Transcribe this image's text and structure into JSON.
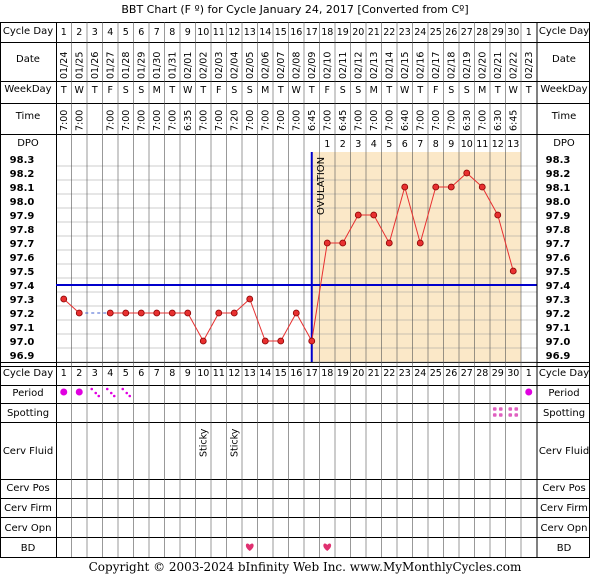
{
  "title": "BBT Chart (F º) for Cycle January 24, 2017  [Converted from Cº]",
  "row_labels": {
    "cycle_day": "Cycle Day",
    "date": "Date",
    "weekday": "WeekDay",
    "time": "Time",
    "dpo": "DPO",
    "period": "Period",
    "spotting": "Spotting",
    "cerv_fluid": "Cerv Fluid",
    "cerv_pos": "Cerv Pos",
    "cerv_firm": "Cerv Firm",
    "cerv_opn": "Cerv Opn",
    "bd": "BD"
  },
  "footer": "Copyright © 2003-2024 bInfinity Web Inc.    www.MyMonthlyCycles.com",
  "colors": {
    "background": "#ffffff",
    "luteal_fill": "#fbe8c8",
    "grid": "#999999",
    "temp_line": "#e83030",
    "temp_dot": "#e83030",
    "coverline": "#0000cc",
    "ovulation_line": "#0000cc",
    "period_dot": "#e000e0",
    "spotting": "#e060c0",
    "heart": "#e03070"
  },
  "chart_data": {
    "type": "line",
    "cycle_days": [
      1,
      2,
      3,
      4,
      5,
      6,
      7,
      8,
      9,
      10,
      11,
      12,
      13,
      14,
      15,
      16,
      17,
      18,
      19,
      20,
      21,
      22,
      23,
      24,
      25,
      26,
      27,
      28,
      29,
      30,
      1
    ],
    "dates": [
      "01/24",
      "01/25",
      "01/26",
      "01/27",
      "01/28",
      "01/29",
      "01/30",
      "01/31",
      "02/01",
      "02/02",
      "02/03",
      "02/04",
      "02/05",
      "02/06",
      "02/07",
      "02/08",
      "02/09",
      "02/10",
      "02/11",
      "02/12",
      "02/13",
      "02/14",
      "02/15",
      "02/16",
      "02/17",
      "02/18",
      "02/19",
      "02/20",
      "02/21",
      "02/22",
      "02/23"
    ],
    "weekdays": [
      "T",
      "W",
      "T",
      "F",
      "S",
      "S",
      "M",
      "T",
      "W",
      "T",
      "F",
      "S",
      "S",
      "M",
      "T",
      "W",
      "T",
      "F",
      "S",
      "S",
      "M",
      "T",
      "W",
      "T",
      "F",
      "S",
      "S",
      "M",
      "T",
      "W",
      "T"
    ],
    "times": [
      "7:00",
      "7:00",
      "",
      "7:00",
      "7:00",
      "7:00",
      "7:00",
      "7:00",
      "6:35",
      "7:00",
      "7:00",
      "7:20",
      "7:00",
      "7:00",
      "7:00",
      "7:00",
      "6:45",
      "7:00",
      "6:45",
      "7:00",
      "7:00",
      "7:00",
      "6:40",
      "7:00",
      "7:00",
      "7:00",
      "6:30",
      "7:00",
      "6:30",
      "6:45",
      ""
    ],
    "dpo": [
      "",
      "",
      "",
      "",
      "",
      "",
      "",
      "",
      "",
      "",
      "",
      "",
      "",
      "",
      "",
      "",
      "",
      "1",
      "2",
      "3",
      "4",
      "5",
      "6",
      "7",
      "8",
      "9",
      "10",
      "11",
      "12",
      "13",
      ""
    ],
    "temperatures": [
      97.3,
      97.2,
      null,
      97.2,
      97.2,
      97.2,
      97.2,
      97.2,
      97.2,
      97.0,
      97.2,
      97.2,
      97.3,
      97.0,
      97.0,
      97.2,
      97.0,
      97.7,
      97.7,
      97.9,
      97.9,
      97.7,
      98.1,
      97.7,
      98.1,
      98.1,
      98.2,
      98.1,
      97.9,
      97.5,
      null
    ],
    "y_ticks": [
      98.3,
      98.2,
      98.1,
      98.0,
      97.9,
      97.8,
      97.7,
      97.6,
      97.5,
      97.4,
      97.3,
      97.2,
      97.1,
      97.0,
      96.9
    ],
    "ylim": [
      96.9,
      98.3
    ],
    "coverline": 97.4,
    "ovulation_day": 17,
    "ovulation_label": "OVULATION",
    "period": [
      "heavy",
      "heavy",
      "light",
      "light",
      "light",
      "",
      "",
      "",
      "",
      "",
      "",
      "",
      "",
      "",
      "",
      "",
      "",
      "",
      "",
      "",
      "",
      "",
      "",
      "",
      "",
      "",
      "",
      "",
      "",
      "",
      "heavy"
    ],
    "spotting_days": [
      29,
      30
    ],
    "cerv_fluid": {
      "10": "Sticky",
      "12": "Sticky"
    },
    "bd_days": [
      13,
      18
    ]
  }
}
